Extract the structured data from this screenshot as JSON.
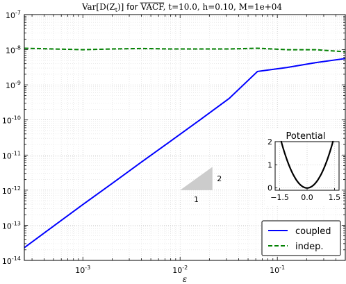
{
  "chart_data": {
    "type": "line",
    "title": "Var[D(Z_t)] for VACF, t=10.0, h=0.10, M=1e+04",
    "title_parts": {
      "var": "Var",
      "expr": "[D(Z",
      "sub": "t",
      "close": ")]",
      "mid": " for ",
      "vacf": "VACF",
      "params": ", t=10.0, h=0.10, M=1e+04"
    },
    "xlabel": "ε",
    "ylabel": "",
    "xscale": "log",
    "yscale": "log",
    "xlim": [
      0.00025,
      0.5
    ],
    "ylim": [
      1e-14,
      1e-07
    ],
    "grid": true,
    "x_ticks": [
      {
        "value": 0.001,
        "base": "10",
        "exp": "-3"
      },
      {
        "value": 0.01,
        "base": "10",
        "exp": "-2"
      },
      {
        "value": 0.1,
        "base": "10",
        "exp": "-1"
      }
    ],
    "y_ticks": [
      {
        "value": 1e-14,
        "base": "10",
        "exp": "-14"
      },
      {
        "value": 1e-13,
        "base": "10",
        "exp": "-13"
      },
      {
        "value": 1e-12,
        "base": "10",
        "exp": "-12"
      },
      {
        "value": 1e-11,
        "base": "10",
        "exp": "-11"
      },
      {
        "value": 1e-10,
        "base": "10",
        "exp": "-10"
      },
      {
        "value": 1e-09,
        "base": "10",
        "exp": "-9"
      },
      {
        "value": 1e-08,
        "base": "10",
        "exp": "-8"
      },
      {
        "value": 1e-07,
        "base": "10",
        "exp": "-7"
      }
    ],
    "series": [
      {
        "name": "coupled",
        "color": "#0000ff",
        "style": "solid",
        "x": [
          0.00025,
          0.0005,
          0.001,
          0.002,
          0.004,
          0.008,
          0.016,
          0.032,
          0.0625,
          0.125,
          0.25,
          0.5
        ],
        "y": [
          2.3e-14,
          9.5e-14,
          3.9e-13,
          1.55e-12,
          6.3e-12,
          2.5e-11,
          1e-10,
          4.1e-10,
          2.4e-09,
          3.1e-09,
          4.3e-09,
          5.6e-09
        ]
      },
      {
        "name": "indep.",
        "color": "#008000",
        "style": "dashed",
        "x": [
          0.00025,
          0.0005,
          0.001,
          0.002,
          0.004,
          0.008,
          0.016,
          0.032,
          0.0625,
          0.125,
          0.25,
          0.5
        ],
        "y": [
          1.1e-08,
          1.05e-08,
          1e-08,
          1.05e-08,
          1.08e-08,
          1.05e-08,
          1.05e-08,
          1.05e-08,
          1.1e-08,
          1e-08,
          1e-08,
          8.7e-09
        ]
      }
    ],
    "legend": {
      "placement": "bottom-right"
    },
    "slope_triangle": {
      "run_label": "1",
      "rise_label": "2",
      "color": "#cccccc"
    },
    "inset": {
      "title": "Potential",
      "type": "line",
      "xlim": [
        -1.75,
        1.75
      ],
      "ylim": [
        -0.1,
        2.0
      ],
      "x_ticks": [
        "−1.5",
        "0.0",
        "1.5"
      ],
      "x_tick_values": [
        -1.5,
        0.0,
        1.5
      ],
      "y_ticks": [
        "0",
        "1",
        "2"
      ],
      "y_tick_values": [
        0,
        1,
        2
      ],
      "curve": "x^2",
      "color": "#000000"
    }
  }
}
